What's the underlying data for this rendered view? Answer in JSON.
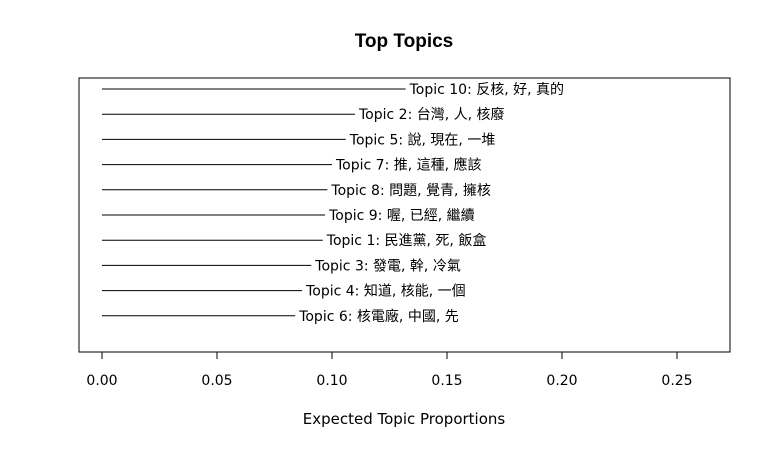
{
  "chart_data": {
    "type": "bar",
    "orientation": "horizontal",
    "title": "Top Topics",
    "xlabel": "Expected Topic Proportions",
    "ylabel": "",
    "xlim": [
      0,
      0.27
    ],
    "xticks": [
      0.0,
      0.05,
      0.1,
      0.15,
      0.2,
      0.25
    ],
    "xtick_labels": [
      "0.00",
      "0.05",
      "0.10",
      "0.15",
      "0.20",
      "0.25"
    ],
    "grid": false,
    "legend": "none",
    "bar_color": "#000000",
    "categories": [
      "Topic 10: 反核, 好, 真的",
      "Topic 2: 台灣, 人, 核廢",
      "Topic 5: 說, 現在, 一堆",
      "Topic 7: 推, 這種, 應該",
      "Topic 8: 問題, 覺青, 擁核",
      "Topic 9: 喔, 已經, 繼續",
      "Topic 1: 民進黨, 死, 飯盒",
      "Topic 3: 發電, 幹, 冷氣",
      "Topic 4: 知道, 核能, 一個",
      "Topic 6: 核電廠, 中國, 先"
    ],
    "values": [
      0.132,
      0.11,
      0.106,
      0.1,
      0.098,
      0.097,
      0.096,
      0.091,
      0.087,
      0.084
    ]
  }
}
